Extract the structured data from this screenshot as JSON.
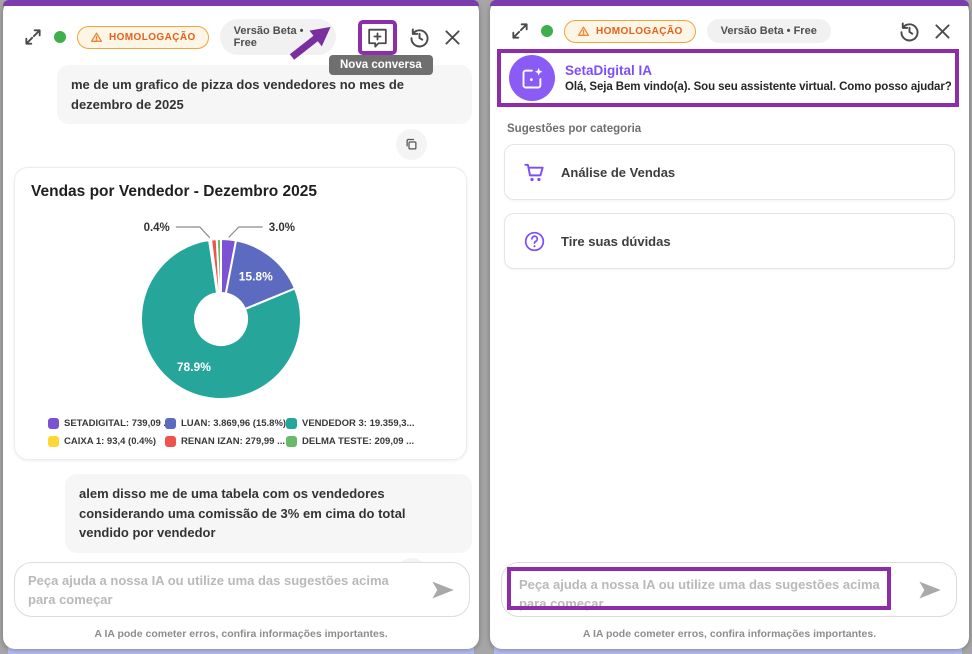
{
  "header": {
    "status_badge": "HOMOLOGAÇÃO",
    "version_badge": "Versão Beta • Free",
    "new_conversation_tooltip": "Nova conversa"
  },
  "chat": {
    "input_placeholder": "Peça ajuda a nossa IA ou utilize uma das sugestões acima para começar",
    "disclaimer": "A IA pode cometer erros, confira informações importantes."
  },
  "left_panel": {
    "messages": [
      "me de um grafico de pizza dos vendedores no mes de dezembro de 2025",
      "alem disso me de uma tabela com os vendedores considerando uma comissão de 3% em cima do total vendido por vendedor"
    ]
  },
  "right_panel": {
    "assistant_name": "SetaDigital IA",
    "welcome_message": "Olá, Seja Bem vindo(a). Sou seu assistente virtual. Como posso ajudar?",
    "suggestions_label": "Sugestões por categoria",
    "suggestions": [
      {
        "label": "Análise de Vendas",
        "icon": "cart-icon"
      },
      {
        "label": "Tire suas dúvidas",
        "icon": "help-icon"
      }
    ]
  },
  "chart_data": {
    "type": "pie",
    "donut": true,
    "title": "Vendas por Vendedor - Dezembro 2025",
    "legend_position": "bottom",
    "slices": [
      {
        "label": "SETADIGITAL",
        "legend": "SETADIGITAL: 739,09 ...",
        "value": 739.09,
        "pct": 3.0,
        "color": "#7B52D3",
        "callout": "3.0%"
      },
      {
        "label": "LUAN",
        "legend": "LUAN: 3.869,96 (15.8%)",
        "value": 3869.96,
        "pct": 15.8,
        "color": "#5C6BC0",
        "inner_label": "15.8%"
      },
      {
        "label": "VENDEDOR 3",
        "legend": "VENDEDOR 3: 19.359,3...",
        "value": 19359.3,
        "pct": 78.9,
        "color": "#26A69A",
        "inner_label": "78.9%"
      },
      {
        "label": "CAIXA 1",
        "legend": "CAIXA 1: 93,4 (0.4%)",
        "value": 93.4,
        "pct": 0.4,
        "color": "#FDD835",
        "callout": "0.4%"
      },
      {
        "label": "RENAN IZAN",
        "legend": "RENAN IZAN: 279,99 ...",
        "value": 279.99,
        "pct": 1.1,
        "color": "#EF5350"
      },
      {
        "label": "DELMA TESTE",
        "legend": "DELMA TESTE: 209,09 ...",
        "value": 209.09,
        "pct": 0.9,
        "color": "#66BB6A"
      }
    ]
  },
  "colors": {
    "accent_purple": "#7C4DFF",
    "annotation_purple": "#8E2DA8",
    "top_accent": "#7D3CAE",
    "homolog_orange": "#F3A33C",
    "status_green": "#3FAE4C"
  }
}
